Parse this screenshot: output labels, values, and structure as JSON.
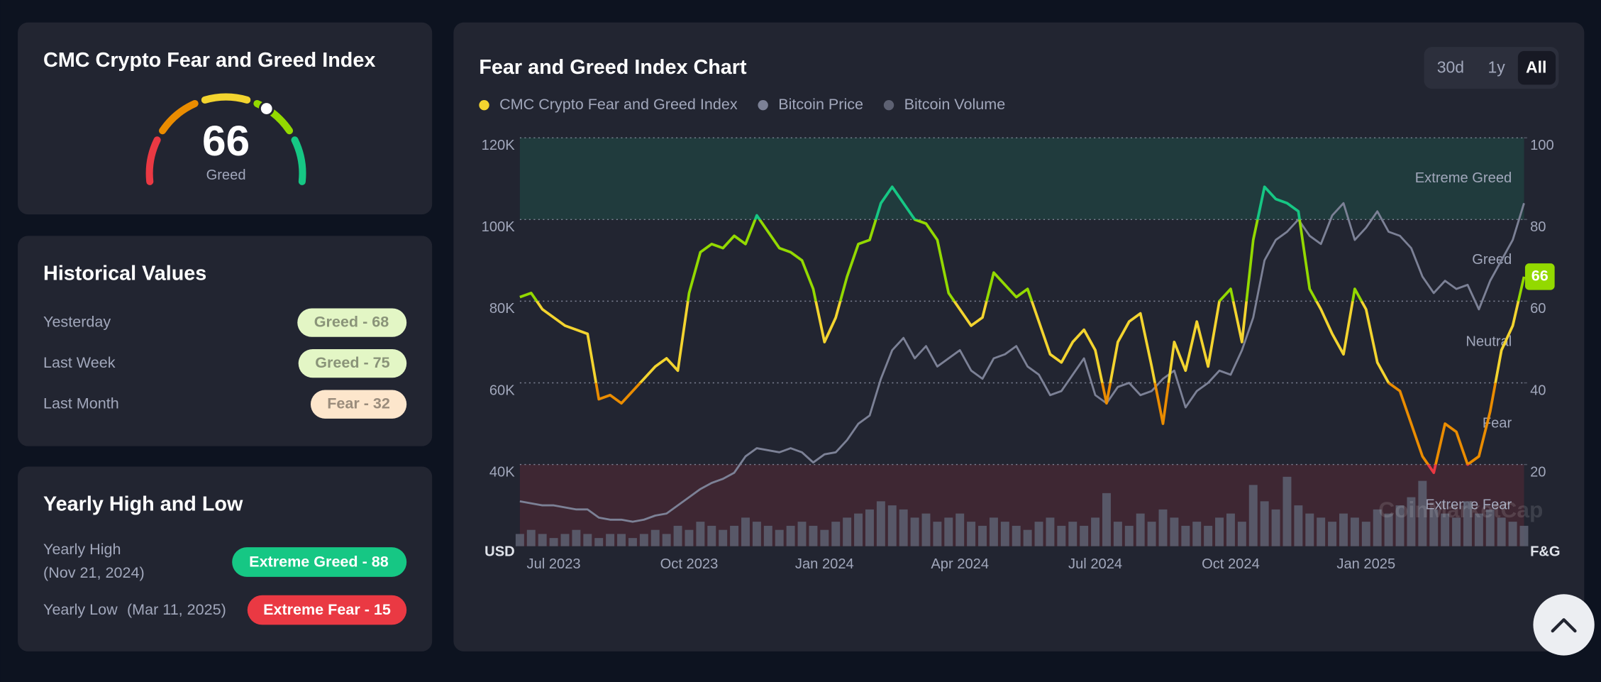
{
  "gauge": {
    "title": "CMC Crypto Fear and Greed Index",
    "value": 66,
    "label": "Greed"
  },
  "historical": {
    "title": "Historical Values",
    "rows": [
      {
        "label": "Yesterday",
        "value": "Greed - 68"
      },
      {
        "label": "Last Week",
        "value": "Greed - 75"
      },
      {
        "label": "Last Month",
        "value": "Fear - 32"
      }
    ]
  },
  "yearly": {
    "title": "Yearly High and Low",
    "high": {
      "label": "Yearly High",
      "date": "(Nov 21, 2024)",
      "value": "Extreme Greed - 88"
    },
    "low": {
      "label": "Yearly Low",
      "date": "(Mar 11, 2025)",
      "value": "Extreme Fear - 15"
    }
  },
  "ranges": [
    "30d",
    "1y",
    "All"
  ],
  "watermark": "CoinMarketCap",
  "chart_data": {
    "type": "line",
    "title": "Fear and Greed Index Chart",
    "categories": [
      null,
      null,
      null,
      "Jul 2023",
      null,
      null,
      null,
      null,
      null,
      null,
      null,
      null,
      null,
      null,
      null,
      "Oct 2023",
      null,
      null,
      null,
      null,
      null,
      null,
      null,
      null,
      null,
      null,
      null,
      "Jan 2024",
      null,
      null,
      null,
      null,
      null,
      null,
      null,
      null,
      null,
      null,
      null,
      "Apr 2024",
      null,
      null,
      null,
      null,
      null,
      null,
      null,
      null,
      null,
      null,
      null,
      "Jul 2024",
      null,
      null,
      null,
      null,
      null,
      null,
      null,
      null,
      null,
      null,
      null,
      "Oct 2024",
      null,
      null,
      null,
      null,
      null,
      null,
      null,
      null,
      null,
      null,
      null,
      "Jan 2025",
      null,
      null,
      null,
      null,
      null,
      null,
      null,
      null,
      null,
      null,
      null,
      null,
      null,
      null
    ],
    "series": [
      {
        "name": "CMC Crypto Fear and Greed Index",
        "color": "#f3d42f",
        "axis": "y2",
        "zone_colored": true,
        "values": [
          61,
          62,
          58,
          56,
          54,
          53,
          52,
          36,
          37,
          35,
          38,
          41,
          44,
          46,
          43,
          62,
          72,
          74,
          73,
          76,
          74,
          81,
          77,
          73,
          72,
          70,
          63,
          50,
          56,
          66,
          74,
          75,
          84,
          88,
          84,
          80,
          79,
          75,
          62,
          58,
          54,
          56,
          67,
          64,
          61,
          63,
          55,
          47,
          45,
          50,
          53,
          48,
          35,
          50,
          55,
          57,
          44,
          30,
          50,
          43,
          55,
          44,
          60,
          63,
          50,
          75,
          88,
          85,
          84,
          82,
          63,
          58,
          52,
          47,
          63,
          58,
          45,
          40,
          38,
          30,
          22,
          18,
          30,
          28,
          20,
          22,
          33,
          48,
          54,
          66
        ]
      },
      {
        "name": "Bitcoin Price",
        "color": "#7c8196",
        "values": [
          31000,
          30500,
          30000,
          30000,
          29500,
          29000,
          29000,
          27000,
          26500,
          26500,
          26000,
          26500,
          27500,
          28000,
          30000,
          32000,
          34000,
          35500,
          36500,
          38000,
          42000,
          44000,
          43500,
          43000,
          44000,
          43000,
          40500,
          42500,
          43000,
          46000,
          50000,
          52000,
          61000,
          68000,
          71000,
          66000,
          69000,
          64000,
          66000,
          68000,
          63000,
          61000,
          66000,
          67000,
          69000,
          64000,
          62000,
          57000,
          58000,
          62000,
          66000,
          57000,
          55000,
          59000,
          60000,
          57000,
          58000,
          61000,
          63000,
          54000,
          58000,
          60000,
          63000,
          62000,
          68000,
          76000,
          90000,
          95000,
          97000,
          100000,
          96000,
          94000,
          101000,
          104000,
          95000,
          98000,
          102000,
          97000,
          96000,
          93000,
          86000,
          82000,
          85000,
          83000,
          84000,
          78000,
          85000,
          90000,
          95000,
          104000
        ]
      },
      {
        "name": "Bitcoin Volume",
        "color": "#5d6172",
        "axis": "y2",
        "type": "bar",
        "values": [
          3,
          4,
          3,
          2,
          3,
          4,
          3,
          2,
          3,
          3,
          2,
          3,
          4,
          3,
          5,
          4,
          6,
          5,
          4,
          5,
          7,
          6,
          5,
          4,
          5,
          6,
          5,
          4,
          6,
          7,
          8,
          9,
          11,
          10,
          9,
          7,
          8,
          6,
          7,
          8,
          6,
          5,
          7,
          6,
          5,
          4,
          6,
          7,
          5,
          6,
          5,
          7,
          13,
          6,
          5,
          8,
          6,
          9,
          7,
          5,
          6,
          5,
          7,
          8,
          6,
          15,
          11,
          9,
          17,
          10,
          8,
          7,
          6,
          8,
          7,
          6,
          9,
          8,
          10,
          12,
          16,
          9,
          8,
          7,
          11,
          8,
          9,
          7,
          6,
          5
        ]
      }
    ],
    "ylim": [
      20000,
      120000
    ],
    "yticks": [
      {
        "value": 40000,
        "label": "40K"
      },
      {
        "value": 60000,
        "label": "60K"
      },
      {
        "value": 80000,
        "label": "80K"
      },
      {
        "value": 100000,
        "label": "100K"
      },
      {
        "value": 120000,
        "label": "120K"
      }
    ],
    "y_unit": "USD",
    "y2lim": [
      0,
      100
    ],
    "y2ticks": [
      20,
      40,
      60,
      80,
      100
    ],
    "y2_unit": "F&G",
    "grid": true,
    "zones": [
      {
        "label": "Extreme Fear",
        "from": 0,
        "to": 20,
        "color": "#ea3943",
        "shaded": true
      },
      {
        "label": "Fear",
        "from": 20,
        "to": 40,
        "color": "#ea8c00"
      },
      {
        "label": "Neutral",
        "from": 40,
        "to": 60,
        "color": "#f3d42f"
      },
      {
        "label": "Greed",
        "from": 60,
        "to": 80,
        "color": "#93d900"
      },
      {
        "label": "Extreme Greed",
        "from": 80,
        "to": 100,
        "color": "#16c784",
        "shaded": true
      }
    ]
  }
}
